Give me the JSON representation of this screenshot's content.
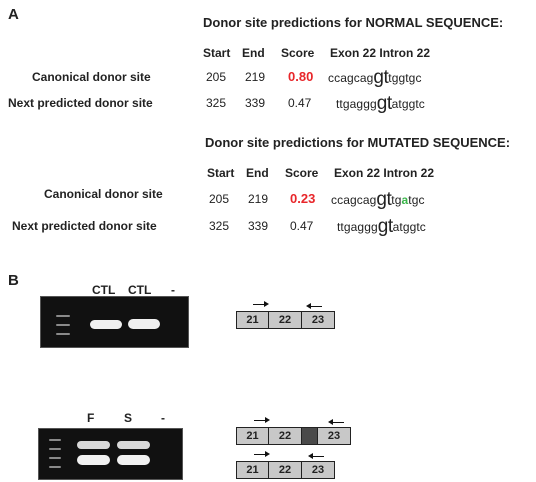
{
  "panel_a": {
    "letter": "A",
    "normal": {
      "heading": "Donor site predictions for NORMAL SEQUENCE:",
      "columns": {
        "start": "Start",
        "end": "End",
        "score": "Score",
        "exon_intron": "Exon 22 Intron 22"
      },
      "rows": [
        {
          "label": "Canonical donor site",
          "start": "205",
          "end": "219",
          "score": "0.80",
          "seq_pre": "ccagcag",
          "seq_gt": "gt",
          "seq_post": "tggtgc"
        },
        {
          "label": "Next predicted donor site",
          "start": "325",
          "end": "339",
          "score": "0.47",
          "seq_pre": "ttgaggg",
          "seq_gt": "gt",
          "seq_post": "atggtc"
        }
      ]
    },
    "mutated": {
      "heading": "Donor site predictions for MUTATED SEQUENCE:",
      "columns": {
        "start": "Start",
        "end": "End",
        "score": "Score",
        "exon_intron": "Exon 22 Intron 22"
      },
      "rows": [
        {
          "label": "Canonical donor site",
          "start": "205",
          "end": "219",
          "score": "0.23",
          "seq_pre": "ccagcag",
          "seq_gt": "gt",
          "seq_mid": "tg",
          "seq_mut": "a",
          "seq_post": "tgc"
        },
        {
          "label": "Next predicted donor site",
          "start": "325",
          "end": "339",
          "score": "0.47",
          "seq_pre": "ttgaggg",
          "seq_gt": "gt",
          "seq_post": "atggtc"
        }
      ]
    },
    "colors": {
      "highlight_score": "#e8262a",
      "mutation": "#3ab54a"
    }
  },
  "panel_b": {
    "letter": "B",
    "gel1": {
      "lanes": [
        "CTL",
        "CTL",
        "-"
      ]
    },
    "gel2": {
      "lanes": [
        "F",
        "S",
        "-"
      ]
    },
    "diagram1": {
      "exons": [
        "21",
        "22",
        "23"
      ]
    },
    "diagram2a": {
      "exons": [
        "21",
        "22",
        "23"
      ]
    },
    "diagram2b": {
      "exons": [
        "21",
        "22",
        "23"
      ]
    }
  }
}
